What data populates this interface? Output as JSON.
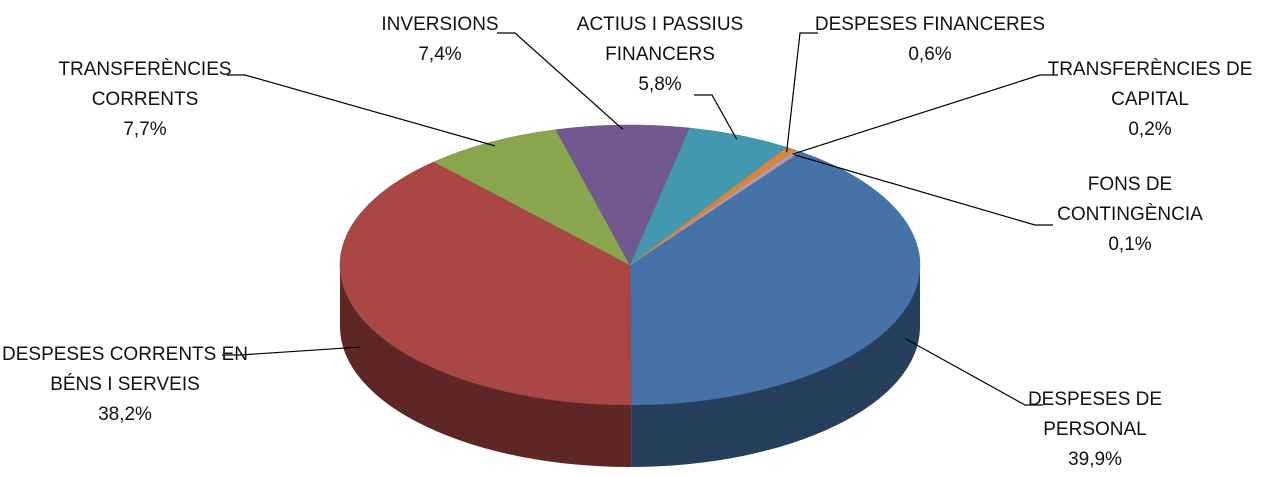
{
  "chart_data": {
    "type": "pie3d",
    "categories": [
      "DESPESES DE PERSONAL",
      "DESPESES CORRENTS EN BÉNS I SERVEIS",
      "TRANSFERÈNCIES CORRENTS",
      "INVERSIONS",
      "ACTIUS I PASSIUS FINANCERS",
      "DESPESES FINANCERES",
      "TRANSFERÈNCIES DE CAPITAL",
      "FONS DE CONTINGÈNCIA"
    ],
    "values": [
      39.9,
      38.2,
      7.7,
      7.4,
      5.8,
      0.6,
      0.2,
      0.1
    ],
    "value_labels": [
      "39,9%",
      "38,2%",
      "7,7%",
      "7,4%",
      "5,8%",
      "0,6%",
      "0,2%",
      "0,1%"
    ],
    "colors": [
      "#4572a7",
      "#aa4643",
      "#89a54e",
      "#71588f",
      "#4198af",
      "#db843d",
      "#93a9cf",
      "#d19392"
    ]
  }
}
